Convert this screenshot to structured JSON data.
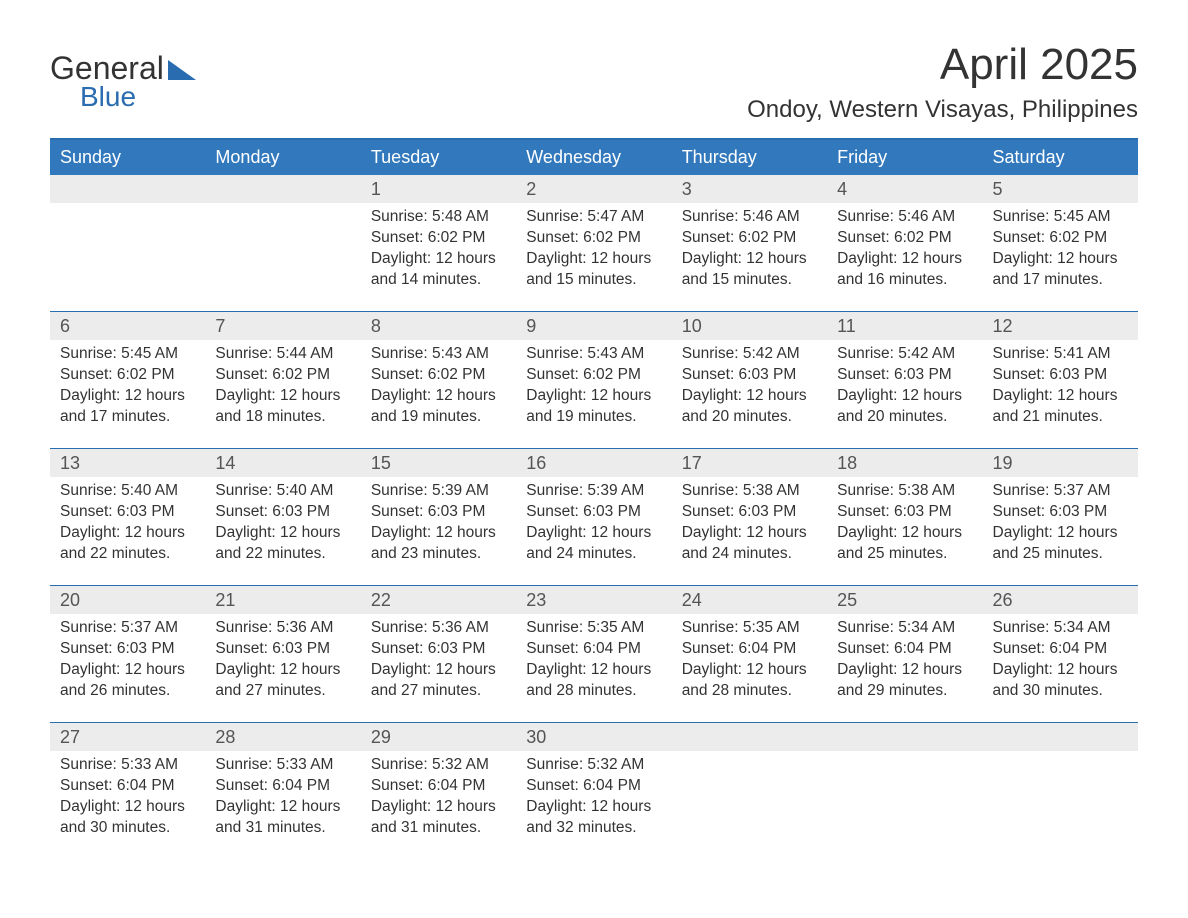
{
  "logo": {
    "word1": "General",
    "word2": "Blue"
  },
  "title": "April 2025",
  "location": "Ondoy, Western Visayas, Philippines",
  "colors": {
    "header_bg": "#3178bd",
    "header_text": "#ffffff",
    "daynum_bg": "#ececec",
    "accent_line": "#2a6cb0",
    "body_text": "#333333",
    "background": "#ffffff"
  },
  "typography": {
    "title_fontsize": 44,
    "location_fontsize": 24,
    "header_fontsize": 18,
    "daynum_fontsize": 18,
    "body_fontsize": 15.5
  },
  "labels": {
    "sunrise_prefix": "Sunrise: ",
    "sunset_prefix": "Sunset: ",
    "daylight_prefix": "Daylight: "
  },
  "day_headers": [
    "Sunday",
    "Monday",
    "Tuesday",
    "Wednesday",
    "Thursday",
    "Friday",
    "Saturday"
  ],
  "weeks": [
    [
      null,
      null,
      {
        "n": "1",
        "sunrise": "5:48 AM",
        "sunset": "6:02 PM",
        "daylight": "12 hours and 14 minutes."
      },
      {
        "n": "2",
        "sunrise": "5:47 AM",
        "sunset": "6:02 PM",
        "daylight": "12 hours and 15 minutes."
      },
      {
        "n": "3",
        "sunrise": "5:46 AM",
        "sunset": "6:02 PM",
        "daylight": "12 hours and 15 minutes."
      },
      {
        "n": "4",
        "sunrise": "5:46 AM",
        "sunset": "6:02 PM",
        "daylight": "12 hours and 16 minutes."
      },
      {
        "n": "5",
        "sunrise": "5:45 AM",
        "sunset": "6:02 PM",
        "daylight": "12 hours and 17 minutes."
      }
    ],
    [
      {
        "n": "6",
        "sunrise": "5:45 AM",
        "sunset": "6:02 PM",
        "daylight": "12 hours and 17 minutes."
      },
      {
        "n": "7",
        "sunrise": "5:44 AM",
        "sunset": "6:02 PM",
        "daylight": "12 hours and 18 minutes."
      },
      {
        "n": "8",
        "sunrise": "5:43 AM",
        "sunset": "6:02 PM",
        "daylight": "12 hours and 19 minutes."
      },
      {
        "n": "9",
        "sunrise": "5:43 AM",
        "sunset": "6:02 PM",
        "daylight": "12 hours and 19 minutes."
      },
      {
        "n": "10",
        "sunrise": "5:42 AM",
        "sunset": "6:03 PM",
        "daylight": "12 hours and 20 minutes."
      },
      {
        "n": "11",
        "sunrise": "5:42 AM",
        "sunset": "6:03 PM",
        "daylight": "12 hours and 20 minutes."
      },
      {
        "n": "12",
        "sunrise": "5:41 AM",
        "sunset": "6:03 PM",
        "daylight": "12 hours and 21 minutes."
      }
    ],
    [
      {
        "n": "13",
        "sunrise": "5:40 AM",
        "sunset": "6:03 PM",
        "daylight": "12 hours and 22 minutes."
      },
      {
        "n": "14",
        "sunrise": "5:40 AM",
        "sunset": "6:03 PM",
        "daylight": "12 hours and 22 minutes."
      },
      {
        "n": "15",
        "sunrise": "5:39 AM",
        "sunset": "6:03 PM",
        "daylight": "12 hours and 23 minutes."
      },
      {
        "n": "16",
        "sunrise": "5:39 AM",
        "sunset": "6:03 PM",
        "daylight": "12 hours and 24 minutes."
      },
      {
        "n": "17",
        "sunrise": "5:38 AM",
        "sunset": "6:03 PM",
        "daylight": "12 hours and 24 minutes."
      },
      {
        "n": "18",
        "sunrise": "5:38 AM",
        "sunset": "6:03 PM",
        "daylight": "12 hours and 25 minutes."
      },
      {
        "n": "19",
        "sunrise": "5:37 AM",
        "sunset": "6:03 PM",
        "daylight": "12 hours and 25 minutes."
      }
    ],
    [
      {
        "n": "20",
        "sunrise": "5:37 AM",
        "sunset": "6:03 PM",
        "daylight": "12 hours and 26 minutes."
      },
      {
        "n": "21",
        "sunrise": "5:36 AM",
        "sunset": "6:03 PM",
        "daylight": "12 hours and 27 minutes."
      },
      {
        "n": "22",
        "sunrise": "5:36 AM",
        "sunset": "6:03 PM",
        "daylight": "12 hours and 27 minutes."
      },
      {
        "n": "23",
        "sunrise": "5:35 AM",
        "sunset": "6:04 PM",
        "daylight": "12 hours and 28 minutes."
      },
      {
        "n": "24",
        "sunrise": "5:35 AM",
        "sunset": "6:04 PM",
        "daylight": "12 hours and 28 minutes."
      },
      {
        "n": "25",
        "sunrise": "5:34 AM",
        "sunset": "6:04 PM",
        "daylight": "12 hours and 29 minutes."
      },
      {
        "n": "26",
        "sunrise": "5:34 AM",
        "sunset": "6:04 PM",
        "daylight": "12 hours and 30 minutes."
      }
    ],
    [
      {
        "n": "27",
        "sunrise": "5:33 AM",
        "sunset": "6:04 PM",
        "daylight": "12 hours and 30 minutes."
      },
      {
        "n": "28",
        "sunrise": "5:33 AM",
        "sunset": "6:04 PM",
        "daylight": "12 hours and 31 minutes."
      },
      {
        "n": "29",
        "sunrise": "5:32 AM",
        "sunset": "6:04 PM",
        "daylight": "12 hours and 31 minutes."
      },
      {
        "n": "30",
        "sunrise": "5:32 AM",
        "sunset": "6:04 PM",
        "daylight": "12 hours and 32 minutes."
      },
      null,
      null,
      null
    ]
  ]
}
